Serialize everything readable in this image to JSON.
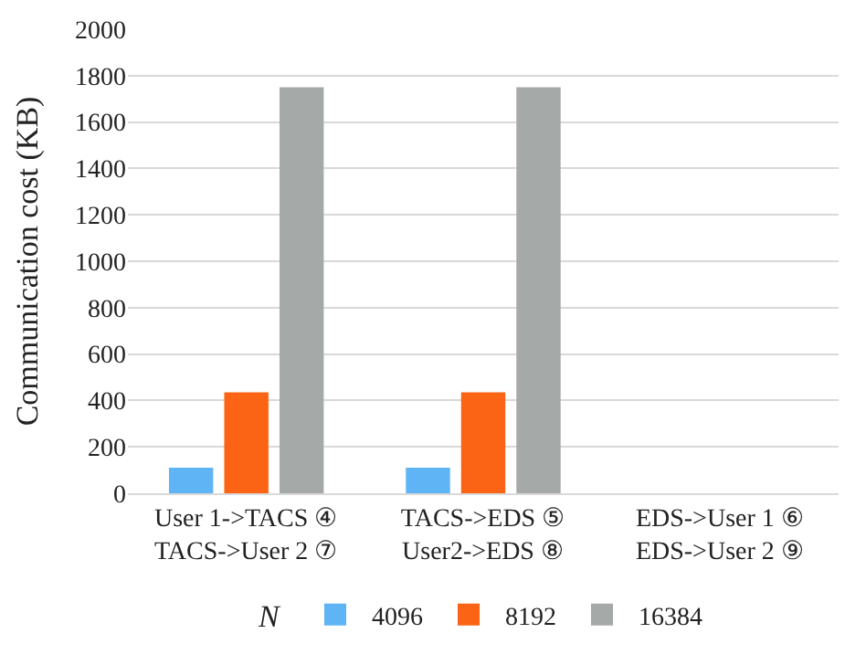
{
  "chart_data": {
    "type": "bar",
    "ylabel": "Communication cost (KB)",
    "legend_title": "N",
    "categories": [
      "User 1->TACS ④\nTACS->User 2 ⑦",
      "TACS->EDS ⑤\nUser2->EDS ⑧",
      "EDS->User 1 ⑥\nEDS->User 2 ⑨"
    ],
    "series": [
      {
        "name": "4096",
        "color": "#5eb4f5",
        "values": [
          110,
          110,
          null
        ]
      },
      {
        "name": "8192",
        "color": "#fa6414",
        "values": [
          435,
          435,
          null
        ]
      },
      {
        "name": "16384",
        "color": "#a5aaa8",
        "values": [
          1750,
          1750,
          null
        ]
      }
    ],
    "ylim": [
      0,
      2000
    ],
    "yticks": [
      0,
      200,
      400,
      600,
      800,
      1000,
      1200,
      1400,
      1600,
      1800,
      2000
    ],
    "grid": "y",
    "legend": "bottom"
  }
}
